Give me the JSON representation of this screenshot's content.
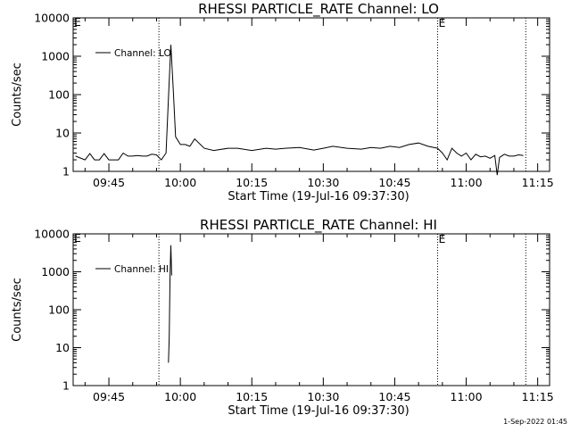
{
  "chart_data": [
    {
      "type": "line",
      "title": "RHESSI PARTICLE_RATE Channel: LO",
      "xlabel": "Start Time (19-Jul-16 09:37:30)",
      "ylabel": "Counts/sec",
      "y_scale": "log",
      "ylim": [
        1,
        10000
      ],
      "yticks": [
        "1",
        "10",
        "100",
        "1000",
        "10000"
      ],
      "xticks": [
        "09:45",
        "10:00",
        "10:15",
        "10:30",
        "10:45",
        "11:00",
        "11:15"
      ],
      "xlim": [
        "09:37:30",
        "11:17:30"
      ],
      "legend": "Channel: LO",
      "legend_position": "top-left",
      "markers": [
        {
          "time": "09:55:30",
          "label": ""
        },
        {
          "time": "10:54:00",
          "label": "E"
        },
        {
          "time": "11:12:30",
          "label": ""
        }
      ],
      "series": [
        {
          "name": "Channel: LO",
          "x": [
            "09:38",
            "09:40",
            "09:41",
            "09:42",
            "09:43",
            "09:44",
            "09:45",
            "09:46",
            "09:47",
            "09:48",
            "09:49",
            "09:50",
            "09:51",
            "09:52",
            "09:53",
            "09:54",
            "09:55",
            "09:56",
            "09:57",
            "09:57:30",
            "09:58",
            "09:58:30",
            "09:59",
            "10:00",
            "10:01",
            "10:02",
            "10:03",
            "10:05",
            "10:07",
            "10:10",
            "10:12",
            "10:15",
            "10:18",
            "10:20",
            "10:22",
            "10:25",
            "10:28",
            "10:30",
            "10:32",
            "10:35",
            "10:38",
            "10:40",
            "10:42",
            "10:44",
            "10:46",
            "10:48",
            "10:50",
            "10:52",
            "10:54",
            "10:55",
            "10:56",
            "10:57",
            "10:58",
            "10:59",
            "11:00",
            "11:01",
            "11:02",
            "11:03",
            "11:04",
            "11:05",
            "11:06",
            "11:06:30",
            "11:07",
            "11:08",
            "11:09",
            "11:10",
            "11:11",
            "11:12"
          ],
          "values": [
            2.5,
            2.0,
            2.9,
            2.0,
            2.0,
            2.9,
            2.0,
            2.0,
            2.0,
            3.0,
            2.5,
            2.5,
            2.6,
            2.5,
            2.5,
            2.8,
            2.7,
            2.0,
            3.0,
            80,
            2000,
            150,
            8,
            5,
            5,
            4.5,
            7,
            4,
            3.5,
            4,
            4,
            3.5,
            4,
            3.8,
            4,
            4.2,
            3.6,
            4,
            4.5,
            4,
            3.8,
            4.2,
            4,
            4.5,
            4.2,
            5,
            5.5,
            4.5,
            4,
            3.0,
            2.0,
            4.0,
            3.0,
            2.5,
            3.0,
            2.0,
            2.8,
            2.4,
            2.5,
            2.2,
            2.6,
            0.8,
            2.3,
            2.8,
            2.5,
            2.5,
            2.7,
            2.6
          ]
        }
      ]
    },
    {
      "type": "line",
      "title": "RHESSI PARTICLE_RATE Channel: HI",
      "xlabel": "Start Time (19-Jul-16 09:37:30)",
      "ylabel": "Counts/sec",
      "y_scale": "log",
      "ylim": [
        1,
        10000
      ],
      "yticks": [
        "1",
        "10",
        "100",
        "1000",
        "10000"
      ],
      "xticks": [
        "09:45",
        "10:00",
        "10:15",
        "10:30",
        "10:45",
        "11:00",
        "11:15"
      ],
      "xlim": [
        "09:37:30",
        "11:17:30"
      ],
      "legend": "Channel: HI",
      "legend_position": "top-left",
      "markers": [
        {
          "time": "09:55:30",
          "label": ""
        },
        {
          "time": "10:54:00",
          "label": "E"
        },
        {
          "time": "11:12:30",
          "label": ""
        }
      ],
      "series": [
        {
          "name": "Channel: HI",
          "x": [
            "09:57:30",
            "09:57:40",
            "09:57:50",
            "09:58:00",
            "09:58:10"
          ],
          "values": [
            4,
            20,
            800,
            5000,
            800
          ]
        }
      ]
    }
  ],
  "timestamp": "1-Sep-2022 01:45"
}
